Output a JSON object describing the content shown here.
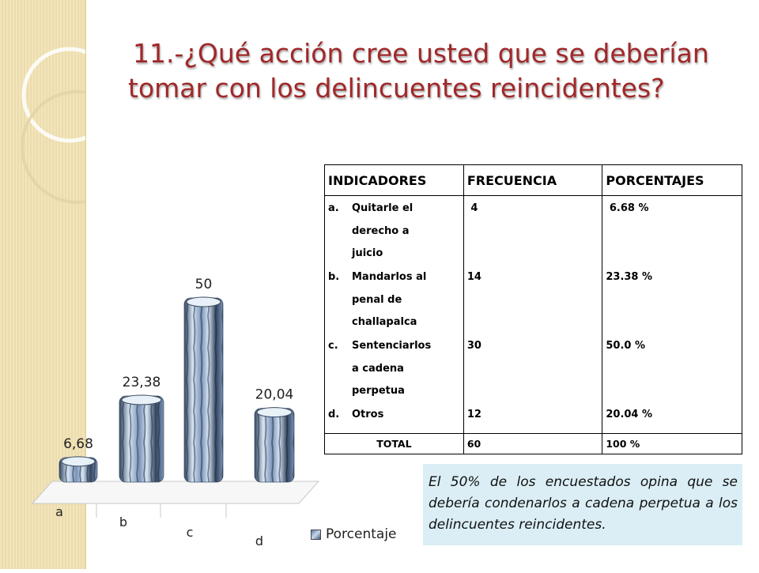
{
  "title_line1": "11.-¿Qué acción cree usted que se deberían",
  "title_line2": "tomar con los delincuentes reincidentes?",
  "table": {
    "headers": [
      "INDICADORES",
      "FRECUENCIA",
      "PORCENTAJES"
    ],
    "rows": [
      {
        "letter": "a.",
        "lines": [
          "Quitarle el",
          "derecho a",
          "juicio"
        ],
        "frequency": "4",
        "percentage": "6.68 %"
      },
      {
        "letter": "b.",
        "lines": [
          "Mandarlos al",
          "penal de",
          "challapalca"
        ],
        "frequency": "14",
        "percentage": "23.38 %"
      },
      {
        "letter": "c.",
        "lines": [
          "Sentenciarlos",
          "a cadena",
          "perpetua"
        ],
        "frequency": "30",
        "percentage": "50.0 %"
      },
      {
        "letter": "d.",
        "lines": [
          "Otros"
        ],
        "frequency": "12",
        "percentage": "20.04 %"
      }
    ],
    "total": {
      "label": "TOTAL",
      "frequency": "60",
      "percentage": "100 %"
    }
  },
  "note": "El 50% de los encuestados opina que se debería condenarlos a cadena perpetua a los delincuentes reincidentes.",
  "chart_data": {
    "type": "bar",
    "categories": [
      "a",
      "b",
      "c",
      "d"
    ],
    "series": [
      {
        "name": "Porcentaje",
        "values": [
          6.68,
          23.38,
          50,
          20.04
        ]
      }
    ],
    "data_labels": [
      "6,68",
      "23,38",
      "50",
      "20,04"
    ],
    "ylim": [
      0,
      50
    ],
    "grid": false,
    "legend": "bottom-right",
    "colors": {
      "bar_dark": "#33455e",
      "bar_light": "#d6e4f3",
      "bar_mid": "#7a93b8"
    }
  }
}
